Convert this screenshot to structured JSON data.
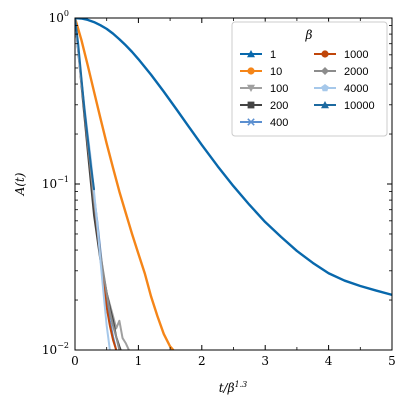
{
  "chart_data": {
    "type": "line",
    "title": "",
    "xlabel": "t/β^1.3",
    "ylabel": "A(t)",
    "xlim": [
      0,
      5
    ],
    "ylim": [
      0.01,
      1
    ],
    "yscale": "log",
    "grid": false,
    "legend": {
      "title": "β",
      "placement": "top-right",
      "columns": 2
    },
    "x_ticks": [
      "0",
      "1",
      "2",
      "3",
      "4",
      "5"
    ],
    "y_ticks": [
      "10^0",
      "10^-1",
      "10^-2"
    ],
    "series": [
      {
        "name": "1",
        "color": "#0868ac",
        "marker": "triangle-up",
        "x": [
          0,
          0.1,
          0.2,
          0.3,
          0.4,
          0.5,
          0.6,
          0.7,
          0.8,
          0.9,
          1.0,
          1.2,
          1.4,
          1.6,
          1.8,
          2.0,
          2.25,
          2.5,
          2.75,
          3.0,
          3.25,
          3.5,
          3.75,
          4.0,
          4.25,
          4.5,
          4.75,
          5.0
        ],
        "y": [
          1.0,
          0.993,
          0.975,
          0.945,
          0.905,
          0.86,
          0.805,
          0.745,
          0.685,
          0.625,
          0.565,
          0.455,
          0.36,
          0.282,
          0.22,
          0.172,
          0.128,
          0.097,
          0.075,
          0.059,
          0.048,
          0.0395,
          0.0335,
          0.029,
          0.0262,
          0.0243,
          0.0228,
          0.0215
        ]
      },
      {
        "name": "10",
        "color": "#f58518",
        "marker": "circle",
        "x": [
          0,
          0.1,
          0.2,
          0.3,
          0.4,
          0.5,
          0.6,
          0.7,
          0.8,
          0.9,
          1.0,
          1.1,
          1.2,
          1.3,
          1.4,
          1.5,
          1.55
        ],
        "y": [
          1.0,
          0.74,
          0.52,
          0.36,
          0.25,
          0.175,
          0.125,
          0.09,
          0.067,
          0.05,
          0.038,
          0.029,
          0.021,
          0.016,
          0.0125,
          0.0105,
          0.01
        ]
      },
      {
        "name": "100",
        "color": "#a0a0a0",
        "marker": "triangle-down",
        "x": [
          0,
          0.1,
          0.2,
          0.3,
          0.4,
          0.5,
          0.6,
          0.65,
          0.7,
          0.75,
          0.8,
          0.85
        ],
        "y": [
          1.0,
          0.42,
          0.18,
          0.078,
          0.036,
          0.022,
          0.016,
          0.0135,
          0.015,
          0.0118,
          0.011,
          0.01
        ]
      },
      {
        "name": "200",
        "color": "#444444",
        "marker": "square",
        "x": [
          0,
          0.1,
          0.2,
          0.3,
          0.4,
          0.5,
          0.55,
          0.6,
          0.65,
          0.7,
          0.72
        ],
        "y": [
          1.0,
          0.4,
          0.16,
          0.065,
          0.035,
          0.022,
          0.018,
          0.015,
          0.012,
          0.0105,
          0.01
        ]
      },
      {
        "name": "400",
        "color": "#5b8fd0",
        "marker": "x",
        "x": [
          0,
          0.1,
          0.2,
          0.3,
          0.35,
          0.4,
          0.45,
          0.5,
          0.55,
          0.6,
          0.65
        ],
        "y": [
          1.0,
          0.42,
          0.18,
          0.085,
          0.06,
          0.04,
          0.027,
          0.02,
          0.015,
          0.012,
          0.01
        ]
      },
      {
        "name": "1000",
        "color": "#c0460a",
        "marker": "circle",
        "x": [
          0,
          0.1,
          0.2,
          0.3,
          0.4,
          0.45,
          0.5,
          0.55,
          0.6,
          0.65
        ],
        "y": [
          1.0,
          0.42,
          0.18,
          0.08,
          0.037,
          0.025,
          0.018,
          0.014,
          0.0115,
          0.01
        ]
      },
      {
        "name": "2000",
        "color": "#8c8c8c",
        "marker": "diamond",
        "x": [
          0,
          0.1,
          0.2,
          0.3,
          0.4,
          0.5,
          0.55,
          0.6,
          0.65,
          0.7
        ],
        "y": [
          1.0,
          0.42,
          0.18,
          0.08,
          0.038,
          0.022,
          0.017,
          0.014,
          0.012,
          0.01
        ]
      },
      {
        "name": "4000",
        "color": "#a6c8ea",
        "marker": "pentagon",
        "x": [
          0,
          0.1,
          0.2,
          0.25,
          0.3,
          0.35,
          0.4,
          0.45,
          0.5,
          0.55
        ],
        "y": [
          1.0,
          0.42,
          0.2,
          0.14,
          0.09,
          0.058,
          0.035,
          0.022,
          0.014,
          0.01
        ]
      },
      {
        "name": "10000",
        "color": "#1d6aa0",
        "marker": "triangle-up",
        "x": [
          0,
          0.05,
          0.1,
          0.15,
          0.2,
          0.25,
          0.3
        ],
        "y": [
          1.0,
          0.7,
          0.44,
          0.28,
          0.19,
          0.13,
          0.093
        ]
      }
    ]
  }
}
